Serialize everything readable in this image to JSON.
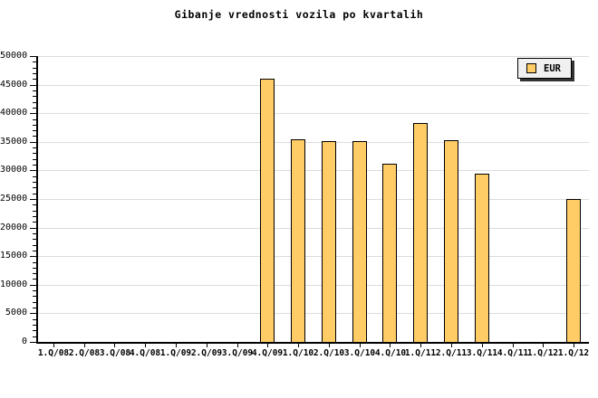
{
  "chart_data": {
    "type": "bar",
    "title": "Gibanje vrednosti vozila po kvartalih",
    "legend": [
      "EUR"
    ],
    "legend_position": "top-right",
    "categories": [
      "1.Q/08",
      "2.Q/08",
      "3.Q/08",
      "4.Q/08",
      "1.Q/09",
      "2.Q/09",
      "3.Q/09",
      "4.Q/09",
      "1.Q/10",
      "2.Q/10",
      "3.Q/10",
      "4.Q/10",
      "1.Q/11",
      "2.Q/11",
      "3.Q/11",
      "4.Q/11",
      "1.Q/12",
      "1.Q/12"
    ],
    "series": [
      {
        "name": "EUR",
        "values": [
          null,
          null,
          null,
          null,
          null,
          null,
          null,
          46000,
          35400,
          35200,
          35100,
          31200,
          38300,
          35300,
          29400,
          null,
          null,
          25000
        ]
      }
    ],
    "xlabel": "",
    "ylabel": "",
    "ylim": [
      0,
      50000
    ],
    "y_tick_step": 5000,
    "y_minor_tick_step": 1000,
    "y_tick_labels": [
      "0",
      "5000",
      "10000",
      "15000",
      "20000",
      "25000",
      "30000",
      "35000",
      "40000",
      "45000",
      "50000"
    ],
    "grid": "horizontal-major",
    "colors": {
      "bar_fill": "#FFCC66",
      "bar_border": "#000000",
      "grid": "#DCDCDC",
      "axis": "#000000",
      "legend_bg": "#F0F0F0",
      "legend_shadow": "#333333",
      "background": "#FFFFFF",
      "text": "#000000"
    }
  }
}
